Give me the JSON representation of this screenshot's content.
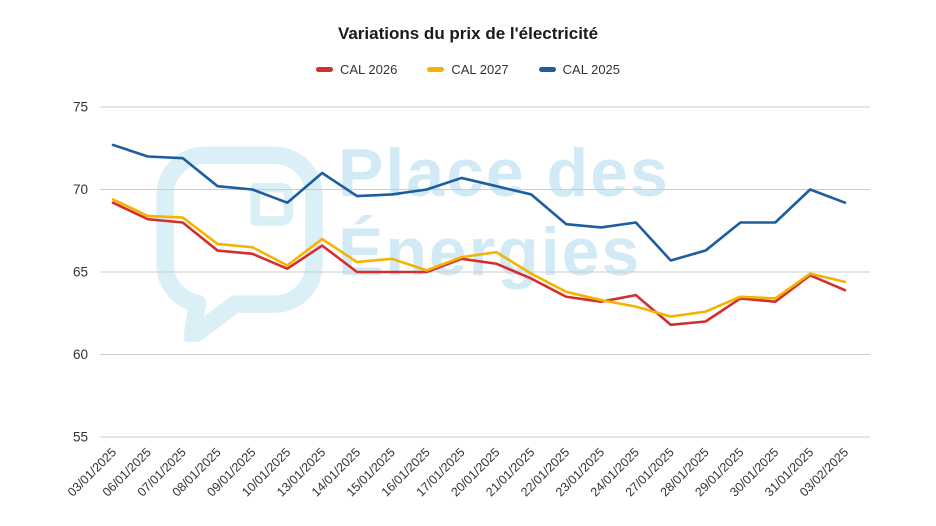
{
  "page": {
    "title": "Variations du prix de l'électricité"
  },
  "chart_data": {
    "type": "line",
    "title": "Variations du prix de l'électricité",
    "xlabel": "",
    "ylabel": "",
    "ylim": [
      55,
      75
    ],
    "yticks": [
      55,
      60,
      65,
      70,
      75
    ],
    "grid": true,
    "legend_position": "top",
    "categories": [
      "03/01/2025",
      "06/01/2025",
      "07/01/2025",
      "08/01/2025",
      "09/01/2025",
      "10/01/2025",
      "13/01/2025",
      "14/01/2025",
      "15/01/2025",
      "16/01/2025",
      "17/01/2025",
      "20/01/2025",
      "21/01/2025",
      "22/01/2025",
      "23/01/2025",
      "24/01/2025",
      "27/01/2025",
      "28/01/2025",
      "29/01/2025",
      "30/01/2025",
      "31/01/2025",
      "03/02/2025"
    ],
    "series": [
      {
        "name": "CAL 2026",
        "color": "#d32f2f",
        "values": [
          69.2,
          68.2,
          68.0,
          66.3,
          66.1,
          65.2,
          66.6,
          65.0,
          65.0,
          65.0,
          65.8,
          65.5,
          64.6,
          63.5,
          63.2,
          63.6,
          61.8,
          62.0,
          63.4,
          63.2,
          64.8,
          63.9
        ]
      },
      {
        "name": "CAL 2027",
        "color": "#f5b301",
        "values": [
          69.4,
          68.4,
          68.3,
          66.7,
          66.5,
          65.4,
          67.0,
          65.6,
          65.8,
          65.1,
          65.9,
          66.2,
          64.9,
          63.8,
          63.3,
          62.9,
          62.3,
          62.6,
          63.5,
          63.4,
          64.9,
          64.4
        ]
      },
      {
        "name": "CAL 2025",
        "color": "#1c5e9e",
        "values": [
          72.7,
          72.0,
          71.9,
          70.2,
          70.0,
          69.2,
          71.0,
          69.6,
          69.7,
          70.0,
          70.7,
          70.2,
          69.7,
          67.9,
          67.7,
          68.0,
          65.7,
          66.3,
          68.0,
          68.0,
          70.0,
          69.2
        ]
      }
    ],
    "watermark": {
      "line1": "Place des",
      "line2": "Énergies"
    }
  }
}
